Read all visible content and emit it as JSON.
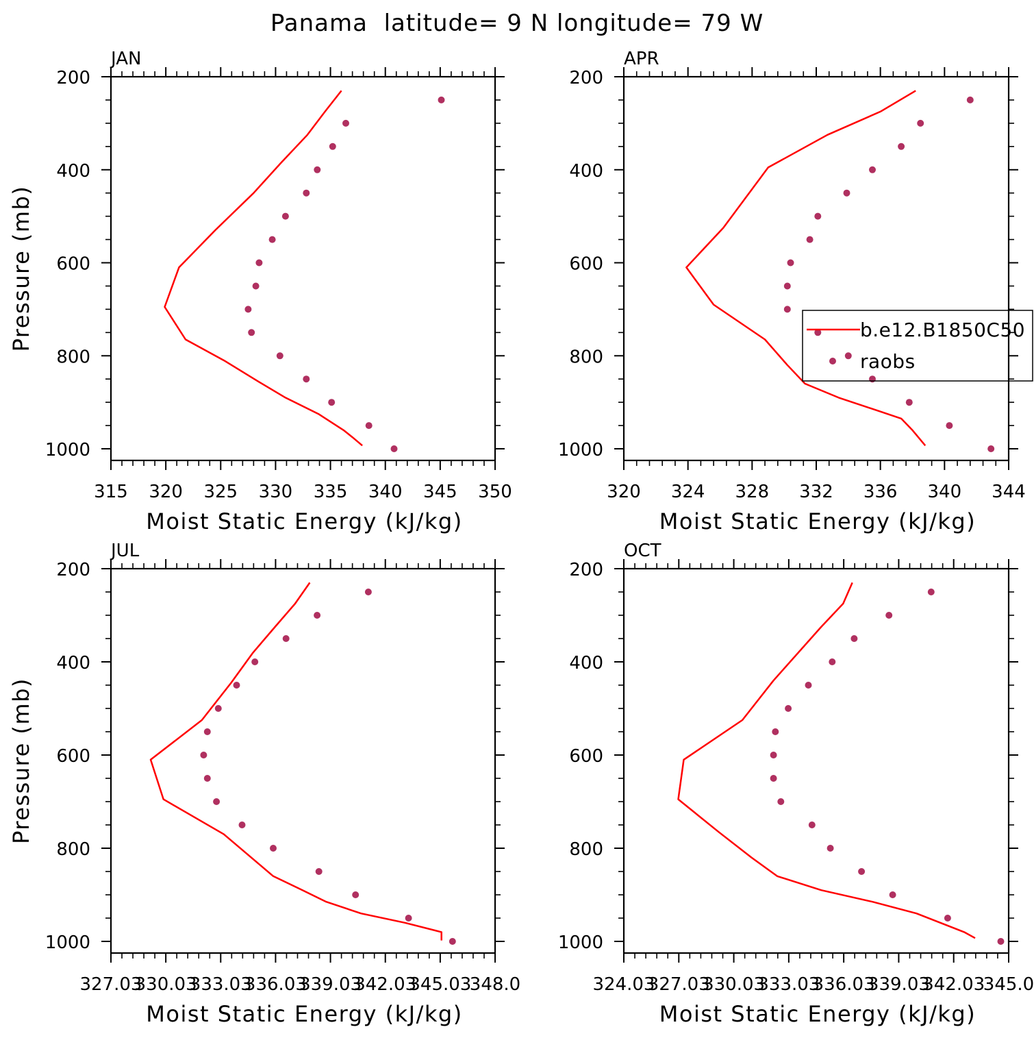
{
  "page_title": "Panama  latitude= 9 N longitude= 79 W",
  "colors": {
    "model": "#ff0000",
    "obs": "#b03060",
    "axis": "#000000"
  },
  "legend": {
    "model_label": "b.e12.B1850C50",
    "obs_label": "raobs",
    "panel": "APR",
    "placement": "right, mid-lower"
  },
  "chart_data": [
    {
      "type": "line",
      "panel": "JAN",
      "title": "JAN",
      "xlabel": "Moist Static Energy (kJ/kg)",
      "ylabel": "Pressure (mb)",
      "xlim": [
        315,
        350
      ],
      "ylim": [
        200,
        1000
      ],
      "xticks": [
        315,
        320,
        325,
        330,
        335,
        340,
        345,
        350
      ],
      "xticklabels": [
        "315",
        "320",
        "325",
        "330",
        "335",
        "340",
        "345",
        "350"
      ],
      "yticks": [
        200,
        400,
        600,
        800,
        1000
      ],
      "yticklabels": [
        "200",
        "400",
        "600",
        "800",
        "1000"
      ],
      "series": [
        {
          "name": "b.e12.B1850C50",
          "style": "line",
          "x": [
            336.0,
            334.5,
            332.9,
            330.5,
            328.0,
            324.5,
            321.2,
            319.9,
            321.8,
            325.3,
            328.4,
            330.9,
            333.9,
            336.2,
            337.0,
            337.9
          ],
          "y": [
            230,
            275,
            325,
            385,
            450,
            530,
            610,
            695,
            765,
            810,
            855,
            890,
            925,
            960,
            975,
            993
          ]
        },
        {
          "name": "raobs",
          "style": "markers",
          "x": [
            345.1,
            336.4,
            335.2,
            333.8,
            332.8,
            330.9,
            329.7,
            328.5,
            328.2,
            327.5,
            327.8,
            330.4,
            332.8,
            335.1,
            338.5,
            340.8
          ],
          "y": [
            250,
            300,
            350,
            400,
            450,
            500,
            550,
            600,
            650,
            700,
            750,
            800,
            850,
            900,
            950,
            1000
          ]
        }
      ]
    },
    {
      "type": "line",
      "panel": "APR",
      "title": "APR",
      "xlabel": "Moist Static Energy (kJ/kg)",
      "ylabel": "",
      "xlim": [
        320,
        344
      ],
      "ylim": [
        200,
        1000
      ],
      "xticks": [
        320,
        324,
        328,
        332,
        336,
        340,
        344
      ],
      "xticklabels": [
        "320",
        "324",
        "328",
        "332",
        "336",
        "340",
        "344"
      ],
      "yticks": [
        200,
        400,
        600,
        800,
        1000
      ],
      "yticklabels": [
        "200",
        "400",
        "600",
        "800",
        "1000"
      ],
      "series": [
        {
          "name": "b.e12.B1850C50",
          "style": "line",
          "x": [
            338.2,
            336.0,
            332.7,
            329.0,
            326.2,
            323.9,
            325.6,
            328.8,
            330.2,
            331.3,
            333.4,
            336.0,
            337.3,
            338.0,
            338.8
          ],
          "y": [
            230,
            275,
            325,
            395,
            525,
            610,
            690,
            765,
            820,
            860,
            890,
            920,
            935,
            960,
            993
          ]
        },
        {
          "name": "raobs",
          "style": "markers",
          "x": [
            341.6,
            338.5,
            337.3,
            335.5,
            333.9,
            332.1,
            331.6,
            330.4,
            330.2,
            330.2,
            332.1,
            334.0,
            335.5,
            337.8,
            340.3,
            342.9
          ],
          "y": [
            250,
            300,
            350,
            400,
            450,
            500,
            550,
            600,
            650,
            700,
            750,
            800,
            850,
            900,
            950,
            1000
          ]
        }
      ]
    },
    {
      "type": "line",
      "panel": "JUL",
      "title": "JUL",
      "xlabel": "Moist Static Energy (kJ/kg)",
      "ylabel": "Pressure (mb)",
      "xlim": [
        327.03,
        348.03
      ],
      "ylim": [
        200,
        1000
      ],
      "xticks": [
        327.03,
        330.03,
        333.03,
        336.03,
        339.03,
        342.03,
        345.03,
        348.03
      ],
      "xticklabels": [
        "327.03",
        "330.03",
        "333.03",
        "336.03",
        "339.03",
        "342.03",
        "345.03",
        "348.0"
      ],
      "yticks": [
        200,
        400,
        600,
        800,
        1000
      ],
      "yticklabels": [
        "200",
        "400",
        "600",
        "800",
        "1000"
      ],
      "series": [
        {
          "name": "b.e12.B1850C50",
          "style": "line",
          "x": [
            337.9,
            337.1,
            336.0,
            334.8,
            333.6,
            332.0,
            329.2,
            329.9,
            333.2,
            335.9,
            337.5,
            338.8,
            340.7,
            343.1,
            345.1,
            345.1
          ],
          "y": [
            230,
            275,
            325,
            380,
            445,
            525,
            610,
            695,
            770,
            860,
            890,
            915,
            940,
            960,
            980,
            998
          ]
        },
        {
          "name": "raobs",
          "style": "markers",
          "x": [
            341.1,
            338.3,
            336.6,
            334.9,
            333.9,
            332.9,
            332.3,
            332.1,
            332.3,
            332.8,
            334.2,
            335.9,
            338.4,
            340.4,
            343.3,
            345.7
          ],
          "y": [
            250,
            300,
            350,
            400,
            450,
            500,
            550,
            600,
            650,
            700,
            750,
            800,
            850,
            900,
            950,
            1000
          ]
        }
      ]
    },
    {
      "type": "line",
      "panel": "OCT",
      "title": "OCT",
      "xlabel": "Moist Static Energy (kJ/kg)",
      "ylabel": "",
      "xlim": [
        324.03,
        345.03
      ],
      "ylim": [
        200,
        1000
      ],
      "xticks": [
        324.03,
        327.03,
        330.03,
        333.03,
        336.03,
        339.03,
        342.03,
        345.03
      ],
      "xticklabels": [
        "324.03",
        "327.03",
        "330.03",
        "333.03",
        "336.03",
        "339.03",
        "342.03",
        "345.0"
      ],
      "yticks": [
        200,
        400,
        600,
        800,
        1000
      ],
      "yticklabels": [
        "200",
        "400",
        "600",
        "800",
        "1000"
      ],
      "series": [
        {
          "name": "b.e12.B1850C50",
          "style": "line",
          "x": [
            336.5,
            336.0,
            334.8,
            332.2,
            330.5,
            327.3,
            327.0,
            329.2,
            331.0,
            332.4,
            334.8,
            337.6,
            340.0,
            342.6,
            343.2
          ],
          "y": [
            230,
            275,
            325,
            440,
            525,
            610,
            695,
            765,
            820,
            860,
            890,
            915,
            940,
            980,
            993
          ]
        },
        {
          "name": "raobs",
          "style": "markers",
          "x": [
            340.8,
            338.5,
            336.6,
            335.4,
            334.1,
            333.0,
            332.3,
            332.2,
            332.2,
            332.6,
            334.3,
            335.3,
            337.0,
            338.7,
            341.7,
            344.6
          ],
          "y": [
            250,
            300,
            350,
            400,
            450,
            500,
            550,
            600,
            650,
            700,
            750,
            800,
            850,
            900,
            950,
            1000
          ]
        }
      ]
    }
  ]
}
